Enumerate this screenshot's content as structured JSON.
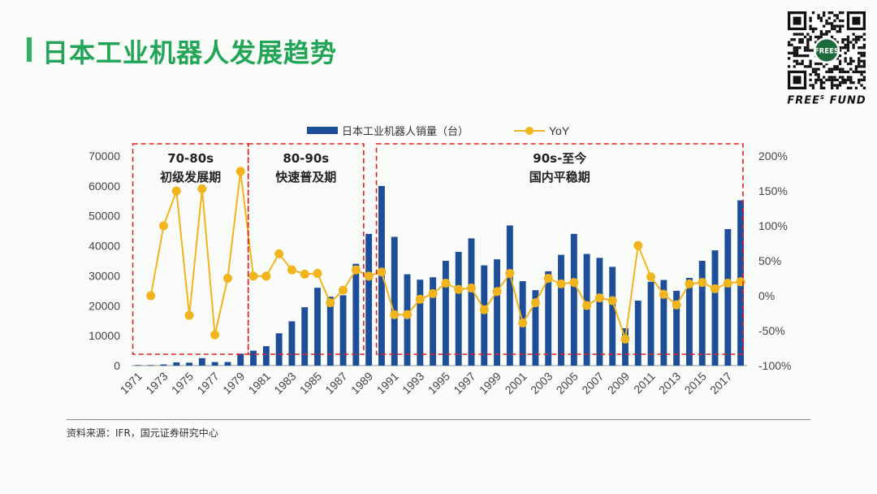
{
  "page": {
    "title": "日本工业机器人发展趋势",
    "source": "资料来源：IFR，国元证券研究中心"
  },
  "logo": {
    "brand_text": "FREE",
    "brand_sup": "S",
    "brand_text2": "FUND",
    "qr_center": "FREES"
  },
  "colors": {
    "title": "#22a556",
    "bar": "#1f4e99",
    "line": "#f2b41c",
    "box": "#e02020"
  },
  "chart_data": {
    "type": "bar",
    "legend": [
      "日本工业机器人销量（台）",
      "YoY"
    ],
    "x": [
      1971,
      1972,
      1973,
      1974,
      1975,
      1976,
      1977,
      1978,
      1979,
      1980,
      1981,
      1982,
      1983,
      1984,
      1985,
      1986,
      1987,
      1988,
      1989,
      1990,
      1991,
      1992,
      1993,
      1994,
      1995,
      1996,
      1997,
      1998,
      1999,
      2000,
      2001,
      2002,
      2003,
      2004,
      2005,
      2006,
      2007,
      2008,
      2009,
      2010,
      2011,
      2012,
      2013,
      2014,
      2015,
      2016,
      2017,
      2018
    ],
    "x_tick_labels": [
      "1971",
      "1973",
      "1975",
      "1977",
      "1979",
      "1981",
      "1983",
      "1985",
      "1987",
      "1989",
      "1991",
      "1993",
      "1995",
      "1997",
      "1999",
      "2001",
      "2003",
      "2005",
      "2007",
      "2009",
      "2011",
      "2013",
      "2015",
      "2017"
    ],
    "series": [
      {
        "name": "日本工业机器人销量（台）",
        "axis": "left",
        "values": [
          200,
          200,
          400,
          1100,
          1000,
          2500,
          1200,
          1200,
          4000,
          5000,
          6500,
          10800,
          14800,
          19500,
          26000,
          23000,
          23500,
          34000,
          44000,
          60000,
          43000,
          30500,
          28700,
          29500,
          35000,
          38000,
          42500,
          33500,
          35500,
          46800,
          28200,
          25200,
          31500,
          37000,
          44000,
          37300,
          36000,
          33000,
          12500,
          21700,
          28000,
          28600,
          25000,
          29300,
          35000,
          38500,
          45600,
          55200
        ]
      },
      {
        "name": "YoY",
        "axis": "right",
        "values": [
          null,
          0,
          100,
          150,
          -28,
          153,
          -56,
          25,
          178,
          28,
          28,
          60,
          37,
          31,
          32,
          -10,
          8,
          37,
          28,
          34,
          -27,
          -27,
          -5,
          3,
          18,
          9,
          11,
          -20,
          6,
          32,
          -39,
          -10,
          25,
          17,
          19,
          -14,
          -3,
          -7,
          -62,
          72,
          27,
          2,
          -13,
          17,
          19,
          10,
          18,
          20
        ]
      }
    ],
    "y_left": {
      "min": 0,
      "max": 70000,
      "ticks": [
        0,
        10000,
        20000,
        30000,
        40000,
        50000,
        60000,
        70000
      ]
    },
    "y_right": {
      "min": -100,
      "max": 200,
      "ticks": [
        "-100%",
        "-50%",
        "0%",
        "50%",
        "100%",
        "150%",
        "200%"
      ]
    },
    "annotations": [
      {
        "from": 1971,
        "to": 1979,
        "line1": "70-80s",
        "line2": "初级发展期"
      },
      {
        "from": 1980,
        "to": 1988,
        "line1": "80-90s",
        "line2": "快速普及期"
      },
      {
        "from": 1990,
        "to": 2018,
        "line1": "90s-至今",
        "line2": "国内平稳期"
      }
    ]
  }
}
